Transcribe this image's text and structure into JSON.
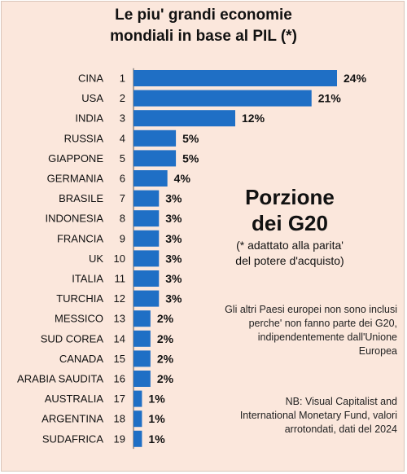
{
  "title_lines": [
    "Le piu' grandi economie",
    "mondiali in base al PIL (*)"
  ],
  "headline_lines": [
    "Porzione",
    "dei G20"
  ],
  "ppp_note_lines": [
    "(* adattato alla parita'",
    "del potere d'acquisto)"
  ],
  "eu_note_lines": [
    "Gli altri Paesi europei non sono inclusi",
    "perche' non fanno parte dei G20,",
    "indipendentemente dall'Unione",
    "Europea"
  ],
  "source_note_lines": [
    "NB: Visual Capitalist and",
    "International Monetary Fund, valori",
    "arrotondati, dati del 2024"
  ],
  "chart_data": {
    "type": "bar",
    "orientation": "horizontal",
    "bar_color": "#1f6fc5",
    "categories": [
      "CINA",
      "USA",
      "INDIA",
      "RUSSIA",
      "GIAPPONE",
      "GERMANIA",
      "BRASILE",
      "INDONESIA",
      "FRANCIA",
      "UK",
      "ITALIA",
      "TURCHIA",
      "MESSICO",
      "SUD COREA",
      "CANADA",
      "ARABIA SAUDITA",
      "AUSTRALIA",
      "ARGENTINA",
      "SUDAFRICA"
    ],
    "ranks": [
      "1",
      "2",
      "3",
      "4",
      "5",
      "6",
      "7",
      "8",
      "9",
      "10",
      "11",
      "12",
      "13",
      "14",
      "15",
      "16",
      "17",
      "18",
      "19"
    ],
    "values": [
      24,
      21,
      12,
      5,
      5,
      4,
      3,
      3,
      3,
      3,
      3,
      3,
      2,
      2,
      2,
      2,
      1,
      1,
      1
    ],
    "value_labels": [
      "24%",
      "21%",
      "12%",
      "5%",
      "5%",
      "4%",
      "3%",
      "3%",
      "3%",
      "3%",
      "3%",
      "3%",
      "2%",
      "2%",
      "2%",
      "2%",
      "1%",
      "1%",
      "1%"
    ],
    "grid": false
  }
}
